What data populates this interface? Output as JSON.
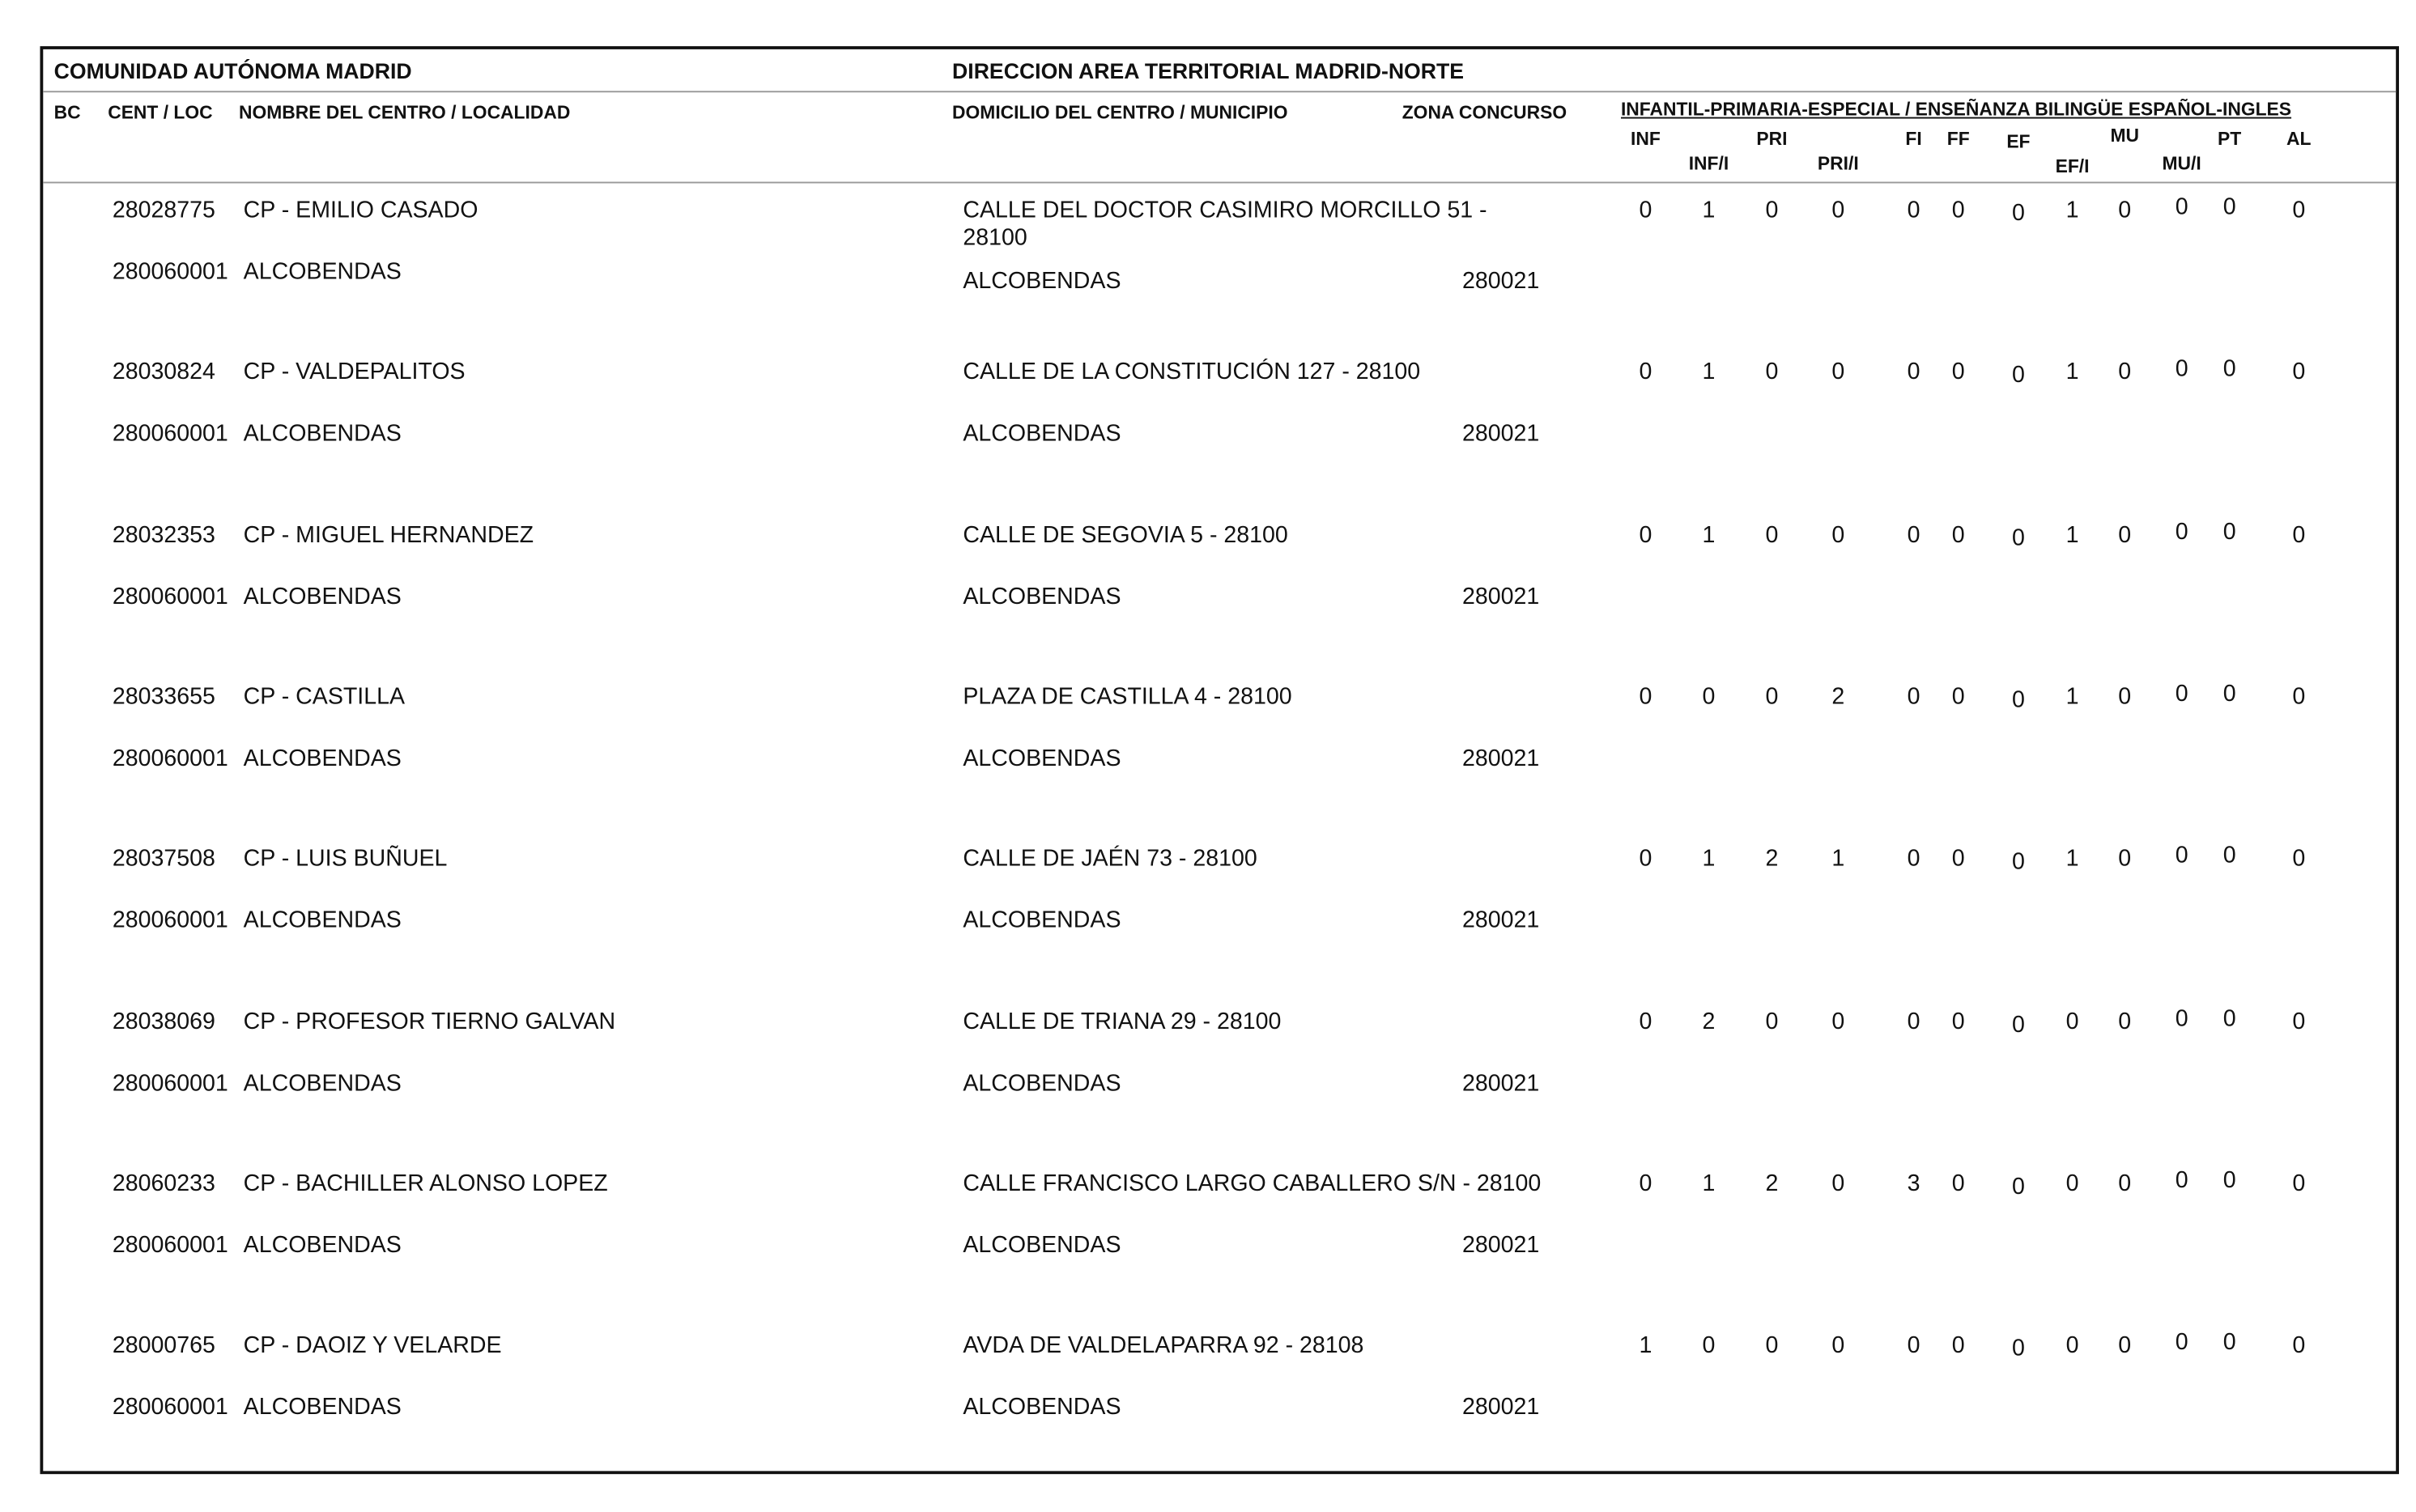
{
  "header": {
    "region": "COMUNIDAD AUTÓNOMA MADRID",
    "direction": "DIRECCION AREA TERRITORIAL MADRID-NORTE"
  },
  "columns": {
    "bc": "BC",
    "cent_loc": "CENT / LOC",
    "name": "NOMBRE DEL CENTRO / LOCALIDAD",
    "address": "DOMICILIO DEL CENTRO / MUNICIPIO",
    "zone": "ZONA CONCURSO",
    "group": "INFANTIL-PRIMARIA-ESPECIAL / ENSEÑANZA BILINGÜE ESPAÑOL-INGLES",
    "specialties": [
      "INF",
      "INF/I",
      "PRI",
      "PRI/I",
      "FI",
      "FF",
      "EF",
      "EF/I",
      "MU",
      "MU/I",
      "PT",
      "AL"
    ]
  },
  "rows": [
    {
      "code": "28028775",
      "name": "CP - EMILIO CASADO",
      "address": "CALLE DEL DOCTOR CASIMIRO MORCILLO 51 - 28100",
      "locality_code": "280060001",
      "locality": "ALCOBENDAS",
      "municipality": "ALCOBENDAS",
      "zone": "280021",
      "counts": [
        0,
        1,
        0,
        0,
        0,
        0,
        0,
        1,
        0,
        0,
        0,
        0
      ]
    },
    {
      "code": "28030824",
      "name": "CP - VALDEPALITOS",
      "address": "CALLE DE LA CONSTITUCIÓN 127 - 28100",
      "locality_code": "280060001",
      "locality": "ALCOBENDAS",
      "municipality": "ALCOBENDAS",
      "zone": "280021",
      "counts": [
        0,
        1,
        0,
        0,
        0,
        0,
        0,
        1,
        0,
        0,
        0,
        0
      ]
    },
    {
      "code": "28032353",
      "name": "CP - MIGUEL HERNANDEZ",
      "address": "CALLE DE SEGOVIA 5 - 28100",
      "locality_code": "280060001",
      "locality": "ALCOBENDAS",
      "municipality": "ALCOBENDAS",
      "zone": "280021",
      "counts": [
        0,
        1,
        0,
        0,
        0,
        0,
        0,
        1,
        0,
        0,
        0,
        0
      ]
    },
    {
      "code": "28033655",
      "name": "CP - CASTILLA",
      "address": "PLAZA DE CASTILLA 4 - 28100",
      "locality_code": "280060001",
      "locality": "ALCOBENDAS",
      "municipality": "ALCOBENDAS",
      "zone": "280021",
      "counts": [
        0,
        0,
        0,
        2,
        0,
        0,
        0,
        1,
        0,
        0,
        0,
        0
      ]
    },
    {
      "code": "28037508",
      "name": "CP - LUIS BUÑUEL",
      "address": "CALLE DE JAÉN 73 - 28100",
      "locality_code": "280060001",
      "locality": "ALCOBENDAS",
      "municipality": "ALCOBENDAS",
      "zone": "280021",
      "counts": [
        0,
        1,
        2,
        1,
        0,
        0,
        0,
        1,
        0,
        0,
        0,
        0
      ]
    },
    {
      "code": "28038069",
      "name": "CP - PROFESOR TIERNO GALVAN",
      "address": "CALLE DE TRIANA 29 - 28100",
      "locality_code": "280060001",
      "locality": "ALCOBENDAS",
      "municipality": "ALCOBENDAS",
      "zone": "280021",
      "counts": [
        0,
        2,
        0,
        0,
        0,
        0,
        0,
        0,
        0,
        0,
        0,
        0
      ]
    },
    {
      "code": "28060233",
      "name": "CP - BACHILLER ALONSO LOPEZ",
      "address": "CALLE FRANCISCO LARGO CABALLERO S/N - 28100",
      "locality_code": "280060001",
      "locality": "ALCOBENDAS",
      "municipality": "ALCOBENDAS",
      "zone": "280021",
      "counts": [
        0,
        1,
        2,
        0,
        3,
        0,
        0,
        0,
        0,
        0,
        0,
        0
      ]
    },
    {
      "code": "28000765",
      "name": "CP - DAOIZ Y VELARDE",
      "address": "AVDA DE VALDELAPARRA 92 - 28108",
      "locality_code": "280060001",
      "locality": "ALCOBENDAS",
      "municipality": "ALCOBENDAS",
      "zone": "280021",
      "counts": [
        1,
        0,
        0,
        0,
        0,
        0,
        0,
        0,
        0,
        0,
        0,
        0
      ]
    }
  ]
}
